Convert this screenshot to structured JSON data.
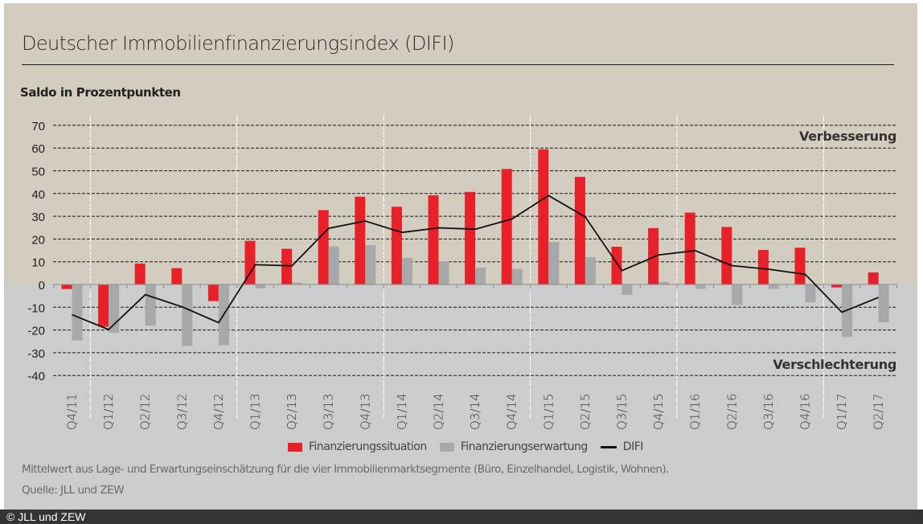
{
  "chart_data": {
    "type": "bar",
    "title": "Deutscher Immobilienfinanzierungsindex (DIFI)",
    "ylabel": "Saldo in Prozentpunkten",
    "xlabel": "",
    "ylim": [
      -40,
      70
    ],
    "yticks": [
      70,
      60,
      50,
      40,
      30,
      20,
      10,
      0,
      -10,
      -20,
      -30,
      -40
    ],
    "grid": true,
    "legend_position": "bottom",
    "annotations": {
      "upper": "Verbesserung",
      "lower": "Verschlechterung"
    },
    "categories": [
      "Q4/11",
      "Q1/12",
      "Q2/12",
      "Q3/12",
      "Q4/12",
      "Q1/13",
      "Q2/13",
      "Q3/13",
      "Q4/13",
      "Q1/14",
      "Q2/14",
      "Q3/14",
      "Q4/14",
      "Q1/15",
      "Q2/15",
      "Q3/15",
      "Q4/15",
      "Q1/16",
      "Q2/16",
      "Q3/16",
      "Q4/16",
      "Q1/17",
      "Q2/17"
    ],
    "series": [
      {
        "name": "Finanzierungssituation",
        "kind": "bar",
        "color": "#e8202a",
        "values": [
          -2,
          -18.6,
          9.2,
          7.2,
          -7.3,
          19.2,
          15.7,
          32.7,
          38.6,
          34.2,
          39.2,
          40.7,
          50.8,
          59.4,
          47.3,
          16.6,
          24.8,
          31.6,
          25.3,
          15.2,
          16.2,
          -1.3,
          5.3
        ]
      },
      {
        "name": "Finanzierungserwartung",
        "kind": "bar",
        "color": "#a6a8aa",
        "values": [
          -24.6,
          -21.2,
          -18.1,
          -27,
          -26.7,
          -1.7,
          0.8,
          16.7,
          17.4,
          11.7,
          10.2,
          7.4,
          6.8,
          18.7,
          12.0,
          -4.5,
          1.2,
          -1.9,
          -9.0,
          -2.0,
          -7.8,
          -23,
          -16.6
        ]
      },
      {
        "name": "DIFI",
        "kind": "line",
        "color": "#111111",
        "values": [
          -13.3,
          -19.8,
          -4.5,
          -9.8,
          -16.8,
          8.7,
          8.2,
          24.7,
          27.9,
          22.9,
          24.9,
          24.3,
          28.8,
          39.1,
          29.7,
          6.1,
          13.0,
          14.9,
          8.3,
          6.7,
          4.5,
          -12.2,
          -5.7
        ]
      }
    ],
    "note": "Mittelwert aus Lage- und Erwartungseinschätzung für die vier Immobilienmarktsegmente (Büro, Einzelhandel, Logistik, Wohnen).",
    "source": "Quelle: JLL und ZEW"
  },
  "colors": {
    "upper_background": "#d3cdbf",
    "lower_background": "#cbcdcd",
    "footer": "#333435"
  },
  "footer": {
    "copyright": "© JLL und ZEW"
  }
}
